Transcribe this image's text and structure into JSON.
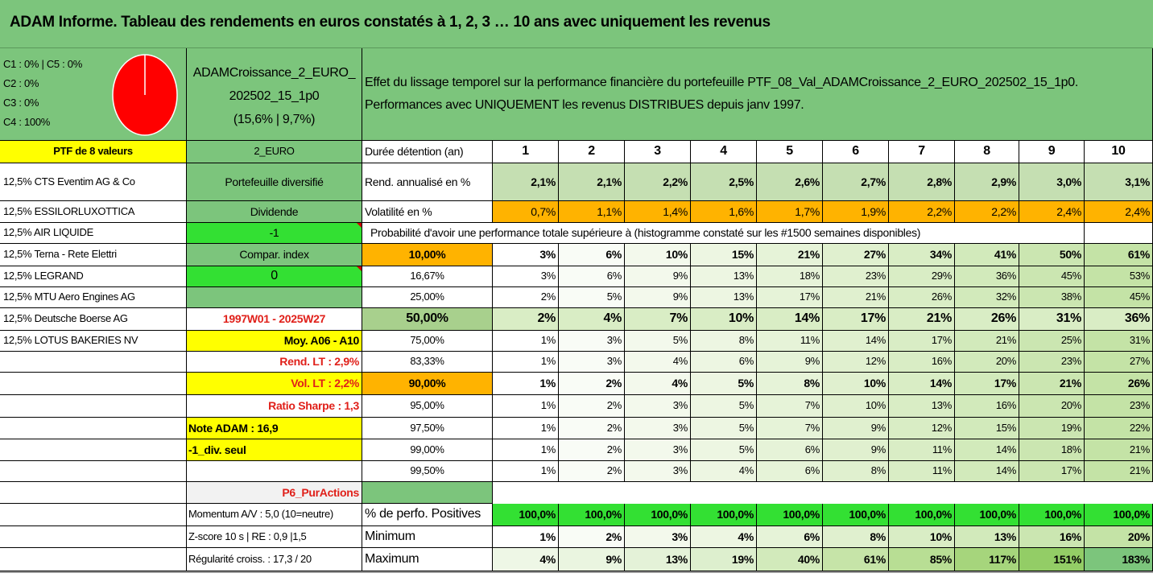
{
  "title": "ADAM Informe. Tableau des rendements en euros constatés à 1, 2, 3 … 10 ans avec uniquement les revenus",
  "alloc": {
    "l1": "C1 : 0% | C5 : 0%",
    "l2": "C2 : 0%",
    "l3": "C3 : 0%",
    "l4": "C4 : 100%"
  },
  "pie_color": "#ff0000",
  "portfolio": {
    "name1": "ADAMCroissance_2_EURO_",
    "name2": "202502_15_1p0",
    "stats": "(15,6% | 9,7%)"
  },
  "effect": {
    "line1": "Effet du lissage temporel sur la performance financière du portefeuille PTF_08_Val_ADAMCroissance_2_EURO_202502_15_1p0.",
    "line2": "Performances avec UNIQUEMENT les revenus DISTRIBUES depuis janv 1997."
  },
  "ptf_label": "PTF de 8 valeurs",
  "currency": "2_EURO",
  "holdings": [
    "12,5% CTS Eventim AG & Co",
    "12,5% ESSILORLUXOTTICA",
    "12,5% AIR LIQUIDE",
    "12,5% Terna - Rete Elettri",
    "12,5% LEGRAND",
    "12,5% MTU Aero Engines AG",
    "12,5% Deutsche Boerse AG",
    "12,5% LOTUS BAKERIES NV"
  ],
  "info": {
    "diversifie": "Portefeuille diversifié",
    "dividende": "Dividende",
    "val_m1": "-1",
    "compar": "Compar. index",
    "val_0": "0",
    "period": "1997W01 - 2025W27",
    "moy": "Moy. A06 - A10",
    "rend_lt": "Rend. LT : 2,9%",
    "vol_lt": "Vol. LT : 2,2%",
    "sharpe": "Ratio Sharpe : 1,3",
    "note": "Note ADAM : 16,9",
    "div_seul": "-1_div. seul",
    "p6": "P6_PurActions",
    "momentum": "Momentum A/V : 5,0 (10=neutre)",
    "zscore": "Z-score 10 s | RE : 0,9 |1,5",
    "regularite": "Régularité croiss. : 17,3 / 20"
  },
  "labels": {
    "duree": "Durée détention (an)",
    "rend": "Rend. annualisé en %",
    "vol": "Volatilité en %",
    "prob": "Probabilité d'avoir une performance totale supérieure à (histogramme constaté sur les #1500 semaines disponibles)",
    "positives": "% de perfo. Positives",
    "minimum": "Minimum",
    "maximum": "Maximum"
  },
  "years": [
    "1",
    "2",
    "3",
    "4",
    "5",
    "6",
    "7",
    "8",
    "9",
    "10"
  ],
  "rend": [
    "2,1%",
    "2,1%",
    "2,2%",
    "2,5%",
    "2,6%",
    "2,7%",
    "2,8%",
    "2,9%",
    "3,0%",
    "3,1%"
  ],
  "vol": [
    "0,7%",
    "1,1%",
    "1,4%",
    "1,6%",
    "1,7%",
    "1,9%",
    "2,2%",
    "2,2%",
    "2,4%",
    "2,4%"
  ],
  "prob_rows": [
    {
      "threshold": "10,00%",
      "values": [
        "3%",
        "6%",
        "10%",
        "15%",
        "21%",
        "27%",
        "34%",
        "41%",
        "50%",
        "61%"
      ]
    },
    {
      "threshold": "16,67%",
      "values": [
        "3%",
        "6%",
        "9%",
        "13%",
        "18%",
        "23%",
        "29%",
        "36%",
        "45%",
        "53%"
      ]
    },
    {
      "threshold": "25,00%",
      "values": [
        "2%",
        "5%",
        "9%",
        "13%",
        "17%",
        "21%",
        "26%",
        "32%",
        "38%",
        "45%"
      ]
    },
    {
      "threshold": "50,00%",
      "values": [
        "2%",
        "4%",
        "7%",
        "10%",
        "14%",
        "17%",
        "21%",
        "26%",
        "31%",
        "36%"
      ]
    },
    {
      "threshold": "75,00%",
      "values": [
        "1%",
        "3%",
        "5%",
        "8%",
        "11%",
        "14%",
        "17%",
        "21%",
        "25%",
        "31%"
      ]
    },
    {
      "threshold": "83,33%",
      "values": [
        "1%",
        "3%",
        "4%",
        "6%",
        "9%",
        "12%",
        "16%",
        "20%",
        "23%",
        "27%"
      ]
    },
    {
      "threshold": "90,00%",
      "values": [
        "1%",
        "2%",
        "4%",
        "5%",
        "8%",
        "10%",
        "14%",
        "17%",
        "21%",
        "26%"
      ]
    },
    {
      "threshold": "95,00%",
      "values": [
        "1%",
        "2%",
        "3%",
        "5%",
        "7%",
        "10%",
        "13%",
        "16%",
        "20%",
        "23%"
      ]
    },
    {
      "threshold": "97,50%",
      "values": [
        "1%",
        "2%",
        "3%",
        "5%",
        "7%",
        "9%",
        "12%",
        "15%",
        "19%",
        "22%"
      ]
    },
    {
      "threshold": "99,00%",
      "values": [
        "1%",
        "2%",
        "3%",
        "5%",
        "6%",
        "9%",
        "11%",
        "14%",
        "18%",
        "21%"
      ]
    },
    {
      "threshold": "99,50%",
      "values": [
        "1%",
        "2%",
        "3%",
        "4%",
        "6%",
        "8%",
        "11%",
        "14%",
        "17%",
        "21%"
      ]
    }
  ],
  "positives": [
    "100,0%",
    "100,0%",
    "100,0%",
    "100,0%",
    "100,0%",
    "100,0%",
    "100,0%",
    "100,0%",
    "100,0%",
    "100,0%"
  ],
  "minimum": [
    "1%",
    "2%",
    "3%",
    "4%",
    "6%",
    "8%",
    "10%",
    "13%",
    "16%",
    "20%"
  ],
  "maximum": [
    "4%",
    "9%",
    "13%",
    "19%",
    "40%",
    "61%",
    "85%",
    "117%",
    "151%",
    "183%"
  ]
}
